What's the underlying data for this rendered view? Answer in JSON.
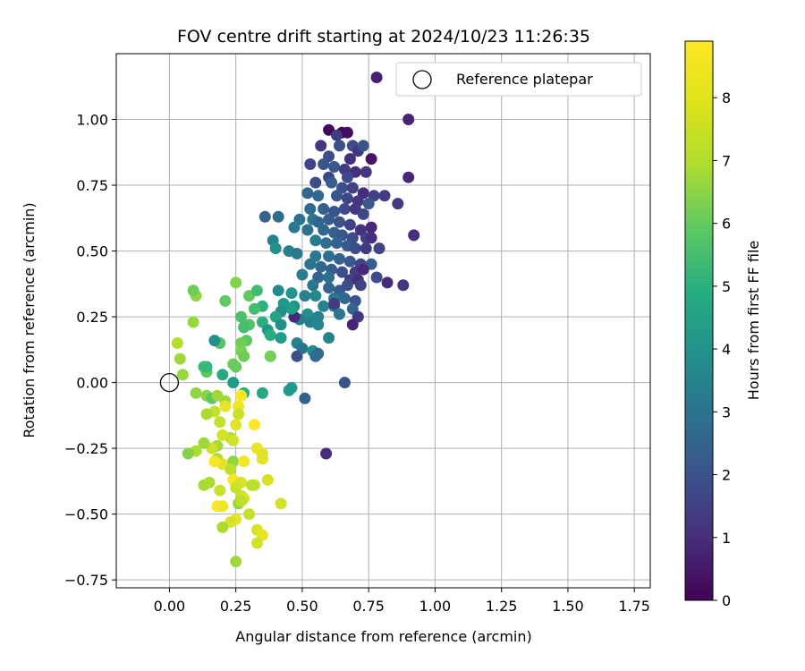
{
  "chart_data": {
    "type": "scatter",
    "title": "FOV centre drift starting at 2024/10/23 11:26:35",
    "xlabel": "Angular distance from reference (arcmin)",
    "ylabel": "Rotation from reference (arcmin)",
    "colorbar_label": "Hours from first FF file",
    "colormap": "viridis",
    "xlim": [
      -0.2,
      1.81
    ],
    "ylim": [
      -0.78,
      1.25
    ],
    "clim": [
      0,
      8.9
    ],
    "xticks": [
      0.0,
      0.25,
      0.5,
      0.75,
      1.0,
      1.25,
      1.5,
      1.75
    ],
    "xtick_labels": [
      "0.00",
      "0.25",
      "0.50",
      "0.75",
      "1.00",
      "1.25",
      "1.50",
      "1.75"
    ],
    "yticks": [
      -0.75,
      -0.5,
      -0.25,
      0.0,
      0.25,
      0.5,
      0.75,
      1.0
    ],
    "ytick_labels": [
      "−0.75",
      "−0.50",
      "−0.25",
      "0.00",
      "0.25",
      "0.50",
      "0.75",
      "1.00"
    ],
    "cticks": [
      0,
      1,
      2,
      3,
      4,
      5,
      6,
      7,
      8
    ],
    "ctick_labels": [
      "0",
      "1",
      "2",
      "3",
      "4",
      "5",
      "6",
      "7",
      "8"
    ],
    "grid": true,
    "legend": {
      "placement": "top-right",
      "entries": [
        "Reference platepar"
      ]
    },
    "reference_point": {
      "x": 0.0,
      "y": 0.0
    },
    "points": [
      [
        0.6,
        0.96,
        0.1
      ],
      [
        0.65,
        0.95,
        0.2
      ],
      [
        0.63,
        0.94,
        1.6
      ],
      [
        0.67,
        0.95,
        0.3
      ],
      [
        0.78,
        1.16,
        0.8
      ],
      [
        0.9,
        1.0,
        0.9
      ],
      [
        0.57,
        0.9,
        1.4
      ],
      [
        0.64,
        0.9,
        2.2
      ],
      [
        0.69,
        0.9,
        2.0
      ],
      [
        0.71,
        0.88,
        1.5
      ],
      [
        0.73,
        0.9,
        2.3
      ],
      [
        0.68,
        0.85,
        1.3
      ],
      [
        0.76,
        0.85,
        0.5
      ],
      [
        0.6,
        0.86,
        2.1
      ],
      [
        0.53,
        0.83,
        1.8
      ],
      [
        0.58,
        0.83,
        2.4
      ],
      [
        0.62,
        0.82,
        2.5
      ],
      [
        0.66,
        0.81,
        1.6
      ],
      [
        0.7,
        0.8,
        1.2
      ],
      [
        0.74,
        0.8,
        1.4
      ],
      [
        0.67,
        0.78,
        2.0
      ],
      [
        0.6,
        0.78,
        1.9
      ],
      [
        0.9,
        0.78,
        1.0
      ],
      [
        0.55,
        0.76,
        2.2
      ],
      [
        0.61,
        0.76,
        2.6
      ],
      [
        0.65,
        0.74,
        2.2
      ],
      [
        0.69,
        0.74,
        1.7
      ],
      [
        0.73,
        0.72,
        1.1
      ],
      [
        0.77,
        0.71,
        1.7
      ],
      [
        0.52,
        0.72,
        2.9
      ],
      [
        0.56,
        0.71,
        3.0
      ],
      [
        0.63,
        0.71,
        2.4
      ],
      [
        0.67,
        0.7,
        1.9
      ],
      [
        0.71,
        0.69,
        1.4
      ],
      [
        0.75,
        0.68,
        2.5
      ],
      [
        0.81,
        0.71,
        1.6
      ],
      [
        0.86,
        0.68,
        1.5
      ],
      [
        0.53,
        0.66,
        3.1
      ],
      [
        0.58,
        0.66,
        2.7
      ],
      [
        0.62,
        0.65,
        2.3
      ],
      [
        0.66,
        0.66,
        2.0
      ],
      [
        0.7,
        0.66,
        1.5
      ],
      [
        0.73,
        0.64,
        1.9
      ],
      [
        0.36,
        0.63,
        2.8
      ],
      [
        0.41,
        0.63,
        3.2
      ],
      [
        0.49,
        0.62,
        3.3
      ],
      [
        0.54,
        0.62,
        3.5
      ],
      [
        0.56,
        0.61,
        2.9
      ],
      [
        0.6,
        0.62,
        2.6
      ],
      [
        0.64,
        0.61,
        2.3
      ],
      [
        0.68,
        0.6,
        1.8
      ],
      [
        0.72,
        0.58,
        1.3
      ],
      [
        0.76,
        0.59,
        1.0
      ],
      [
        0.47,
        0.59,
        3.6
      ],
      [
        0.52,
        0.58,
        3.4
      ],
      [
        0.58,
        0.58,
        3.0
      ],
      [
        0.62,
        0.57,
        2.7
      ],
      [
        0.65,
        0.56,
        2.4
      ],
      [
        0.69,
        0.55,
        2.1
      ],
      [
        0.74,
        0.55,
        1.7
      ],
      [
        0.76,
        0.55,
        1.2
      ],
      [
        0.92,
        0.56,
        1.2
      ],
      [
        0.39,
        0.54,
        3.9
      ],
      [
        0.55,
        0.54,
        3.7
      ],
      [
        0.59,
        0.53,
        3.2
      ],
      [
        0.63,
        0.53,
        2.8
      ],
      [
        0.67,
        0.52,
        2.5
      ],
      [
        0.7,
        0.51,
        2.1
      ],
      [
        0.74,
        0.51,
        1.5
      ],
      [
        0.79,
        0.51,
        1.8
      ],
      [
        0.4,
        0.51,
        4.5
      ],
      [
        0.45,
        0.5,
        4.0
      ],
      [
        0.48,
        0.49,
        3.6
      ],
      [
        0.55,
        0.48,
        3.6
      ],
      [
        0.6,
        0.48,
        3.2
      ],
      [
        0.64,
        0.47,
        2.8
      ],
      [
        0.68,
        0.46,
        2.5
      ],
      [
        0.72,
        0.45,
        1.9
      ],
      [
        0.76,
        0.45,
        2.6
      ],
      [
        0.53,
        0.45,
        3.4
      ],
      [
        0.57,
        0.44,
        3.0
      ],
      [
        0.61,
        0.43,
        2.6
      ],
      [
        0.65,
        0.42,
        2.2
      ],
      [
        0.7,
        0.42,
        1.6
      ],
      [
        0.73,
        0.43,
        1.0
      ],
      [
        0.5,
        0.41,
        3.8
      ],
      [
        0.56,
        0.4,
        2.9
      ],
      [
        0.6,
        0.4,
        3.3
      ],
      [
        0.68,
        0.39,
        1.7
      ],
      [
        0.71,
        0.39,
        1.2
      ],
      [
        0.78,
        0.4,
        2.0
      ],
      [
        0.82,
        0.38,
        1.1
      ],
      [
        0.88,
        0.37,
        1.4
      ],
      [
        0.54,
        0.37,
        3.5
      ],
      [
        0.6,
        0.36,
        2.9
      ],
      [
        0.64,
        0.35,
        2.6
      ],
      [
        0.67,
        0.37,
        2.1
      ],
      [
        0.72,
        0.37,
        1.8
      ],
      [
        0.41,
        0.35,
        4.3
      ],
      [
        0.46,
        0.34,
        4.6
      ],
      [
        0.51,
        0.33,
        3.9
      ],
      [
        0.55,
        0.33,
        4.2
      ],
      [
        0.62,
        0.32,
        3.5
      ],
      [
        0.66,
        0.32,
        3.0
      ],
      [
        0.7,
        0.31,
        2.3
      ],
      [
        0.43,
        0.3,
        4.8
      ],
      [
        0.47,
        0.29,
        4.5
      ],
      [
        0.58,
        0.29,
        3.9
      ],
      [
        0.62,
        0.29,
        3.4
      ],
      [
        0.69,
        0.28,
        2.9
      ],
      [
        0.42,
        0.27,
        4.4
      ],
      [
        0.52,
        0.26,
        4.4
      ],
      [
        0.56,
        0.25,
        3.9
      ],
      [
        0.64,
        0.26,
        3.5
      ],
      [
        0.49,
        0.24,
        3.7
      ],
      [
        0.53,
        0.23,
        4.0
      ],
      [
        0.71,
        0.25,
        1.4
      ],
      [
        0.47,
        0.25,
        1.0
      ],
      [
        0.69,
        0.22,
        0.9
      ],
      [
        0.62,
        0.3,
        1.5
      ],
      [
        0.46,
        0.28,
        5.0
      ],
      [
        0.4,
        0.25,
        5.2
      ],
      [
        0.35,
        0.23,
        5.6
      ],
      [
        0.37,
        0.2,
        4.8
      ],
      [
        0.42,
        0.22,
        4.5
      ],
      [
        0.56,
        0.22,
        4.1
      ],
      [
        0.6,
        0.17,
        4.0
      ],
      [
        0.38,
        0.18,
        5.5
      ],
      [
        0.42,
        0.17,
        4.9
      ],
      [
        0.48,
        0.15,
        3.9
      ],
      [
        0.5,
        0.13,
        3.5
      ],
      [
        0.54,
        0.12,
        4.2
      ],
      [
        0.56,
        0.11,
        3.0
      ],
      [
        0.55,
        0.1,
        3.2
      ],
      [
        0.48,
        0.1,
        2.2
      ],
      [
        0.38,
        0.1,
        4.6
      ],
      [
        0.66,
        0.0,
        2.4
      ],
      [
        0.51,
        -0.06,
        2.7
      ],
      [
        0.59,
        -0.27,
        1.1
      ],
      [
        0.45,
        -0.03,
        4.9
      ],
      [
        0.46,
        -0.02,
        4.8
      ],
      [
        0.35,
        -0.04,
        5.3
      ],
      [
        0.28,
        -0.04,
        5.6
      ],
      [
        0.24,
        0.0,
        5.0
      ],
      [
        0.2,
        0.03,
        5.3
      ],
      [
        0.14,
        0.04,
        6.6
      ],
      [
        0.14,
        0.06,
        5.9
      ],
      [
        0.05,
        0.03,
        7.5
      ],
      [
        0.04,
        0.09,
        7.6
      ],
      [
        0.03,
        0.15,
        7.9
      ],
      [
        0.09,
        0.23,
        7.5
      ],
      [
        0.1,
        0.33,
        7.4
      ],
      [
        0.09,
        0.35,
        6.9
      ],
      [
        0.21,
        0.31,
        6.7
      ],
      [
        0.25,
        0.38,
        7.2
      ],
      [
        0.3,
        0.33,
        6.7
      ],
      [
        0.33,
        0.35,
        6.1
      ],
      [
        0.27,
        0.25,
        6.3
      ],
      [
        0.3,
        0.22,
        6.4
      ],
      [
        0.35,
        0.29,
        5.6
      ],
      [
        0.32,
        0.28,
        6.2
      ],
      [
        0.28,
        0.21,
        6.2
      ],
      [
        0.29,
        0.16,
        6.6
      ],
      [
        0.19,
        0.15,
        6.5
      ],
      [
        0.27,
        0.15,
        6.9
      ],
      [
        0.27,
        0.12,
        7.1
      ],
      [
        0.28,
        0.1,
        6.9
      ],
      [
        0.24,
        0.07,
        6.9
      ],
      [
        0.25,
        0.06,
        6.8
      ],
      [
        0.13,
        0.06,
        6.0
      ],
      [
        0.38,
        0.1,
        7.0
      ],
      [
        0.1,
        -0.04,
        7.4
      ],
      [
        0.14,
        -0.05,
        7.3
      ],
      [
        0.16,
        -0.06,
        6.6
      ],
      [
        0.18,
        -0.05,
        7.6
      ],
      [
        0.21,
        -0.07,
        7.6
      ],
      [
        0.17,
        -0.11,
        8.1
      ],
      [
        0.21,
        -0.09,
        8.6
      ],
      [
        0.14,
        -0.12,
        7.8
      ],
      [
        0.19,
        -0.15,
        8.1
      ],
      [
        0.26,
        -0.09,
        8.7
      ],
      [
        0.27,
        -0.05,
        8.9
      ],
      [
        0.26,
        -0.12,
        8.2
      ],
      [
        0.25,
        -0.16,
        8.5
      ],
      [
        0.23,
        -0.21,
        7.9
      ],
      [
        0.24,
        -0.22,
        8.3
      ],
      [
        0.2,
        -0.2,
        8.3
      ],
      [
        0.18,
        -0.24,
        7.7
      ],
      [
        0.16,
        -0.25,
        8.2
      ],
      [
        0.13,
        -0.23,
        7.6
      ],
      [
        0.1,
        -0.26,
        7.8
      ],
      [
        0.07,
        -0.27,
        7.2
      ],
      [
        0.18,
        -0.29,
        7.8
      ],
      [
        0.2,
        -0.31,
        8.6
      ],
      [
        0.17,
        -0.3,
        8.8
      ],
      [
        0.24,
        -0.3,
        7.4
      ],
      [
        0.28,
        -0.3,
        8.8
      ],
      [
        0.32,
        -0.16,
        8.9
      ],
      [
        0.33,
        -0.25,
        8.6
      ],
      [
        0.35,
        -0.29,
        8.5
      ],
      [
        0.35,
        -0.27,
        8.5
      ],
      [
        0.23,
        -0.33,
        8.0
      ],
      [
        0.13,
        -0.39,
        7.7
      ],
      [
        0.15,
        -0.38,
        7.8
      ],
      [
        0.19,
        -0.41,
        8.2
      ],
      [
        0.24,
        -0.37,
        8.8
      ],
      [
        0.27,
        -0.38,
        8.4
      ],
      [
        0.25,
        -0.4,
        8.2
      ],
      [
        0.32,
        -0.39,
        8.1
      ],
      [
        0.31,
        -0.39,
        8.0
      ],
      [
        0.37,
        -0.37,
        8.4
      ],
      [
        0.27,
        -0.43,
        8.2
      ],
      [
        0.28,
        -0.44,
        8.4
      ],
      [
        0.26,
        -0.46,
        7.5
      ],
      [
        0.18,
        -0.47,
        8.9
      ],
      [
        0.2,
        -0.47,
        8.7
      ],
      [
        0.42,
        -0.46,
        8.3
      ],
      [
        0.3,
        -0.5,
        8.1
      ],
      [
        0.25,
        -0.52,
        8.6
      ],
      [
        0.23,
        -0.53,
        8.4
      ],
      [
        0.2,
        -0.55,
        7.8
      ],
      [
        0.33,
        -0.56,
        8.4
      ],
      [
        0.35,
        -0.58,
        8.6
      ],
      [
        0.33,
        -0.61,
        8.3
      ],
      [
        0.25,
        -0.68,
        7.6
      ],
      [
        0.27,
        -0.45,
        8.0
      ],
      [
        0.17,
        0.16,
        4.5
      ]
    ]
  }
}
